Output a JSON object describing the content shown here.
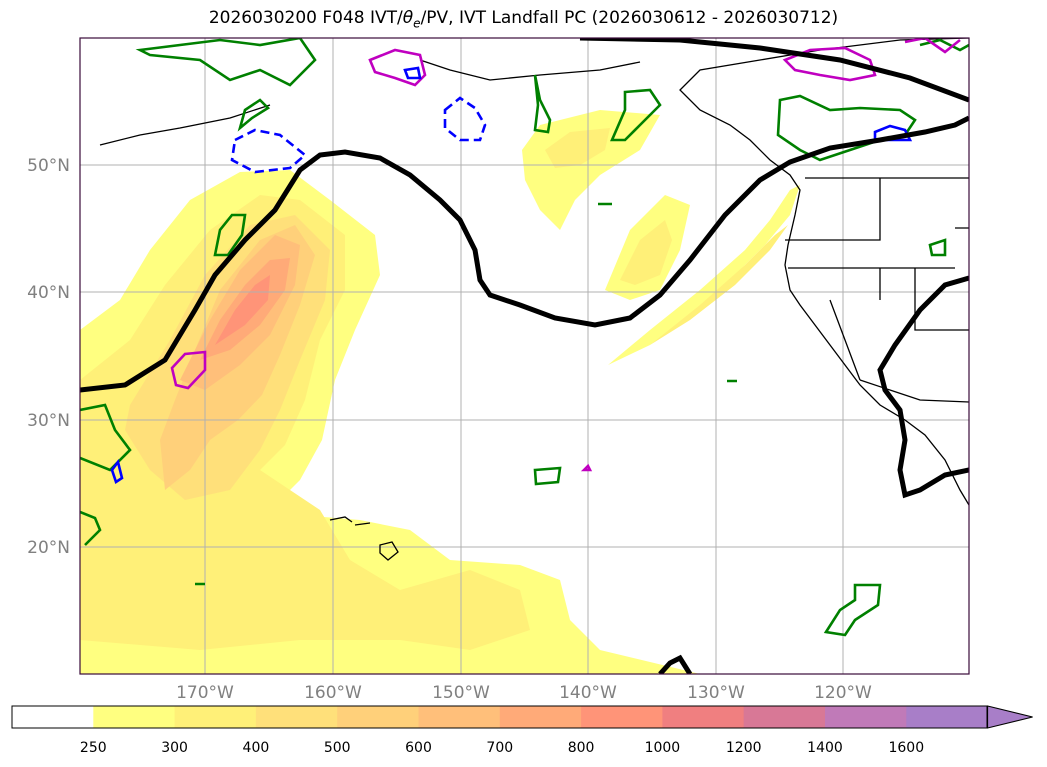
{
  "title": "2026030200 F048 IVT/θe/PV, IVT Landfall PC (2026030612 - 2026030712)",
  "lat_labels": [
    "50°N",
    "40°N",
    "30°N",
    "20°N"
  ],
  "lon_labels": [
    "170°W",
    "160°W",
    "150°W",
    "140°W",
    "130°W",
    "120°W"
  ],
  "colorbar": {
    "ticks": [
      "250",
      "300",
      "400",
      "500",
      "600",
      "700",
      "800",
      "1000",
      "1200",
      "1400",
      "1600"
    ],
    "colors": [
      "#ffffff",
      "#ffff80",
      "#fff078",
      "#ffe07a",
      "#ffd07a",
      "#ffbf7a",
      "#ffaa78",
      "#ff9478",
      "#f07f80",
      "#d87896",
      "#c07ab8",
      "#a87ec8"
    ]
  },
  "contour_colors": {
    "streamline": "#000000",
    "theta_e": "#008000",
    "pv_positive": "#c000c0",
    "pv_negative": "#0000ff"
  }
}
